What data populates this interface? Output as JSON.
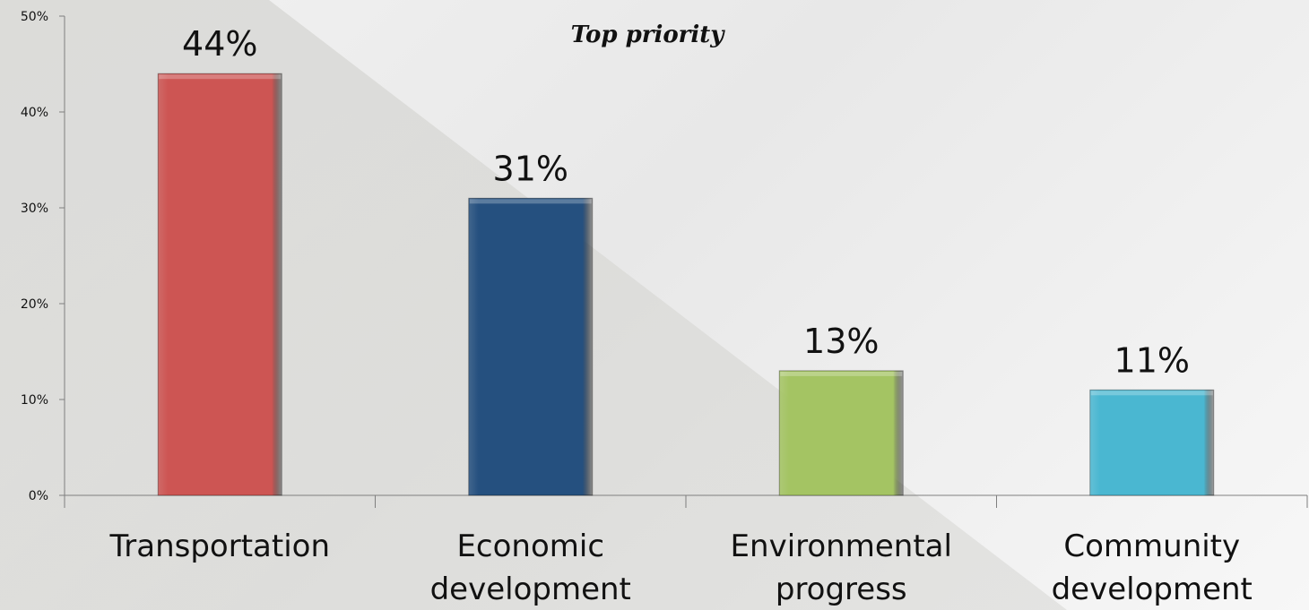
{
  "chart_data": {
    "type": "bar",
    "title": "Top priority",
    "categories": [
      [
        "Transportation"
      ],
      [
        "Economic",
        "development"
      ],
      [
        "Environmental",
        "progress"
      ],
      [
        "Community",
        "development"
      ]
    ],
    "values": [
      44,
      31,
      13,
      11
    ],
    "data_labels": [
      "44%",
      "31%",
      "13%",
      "11%"
    ],
    "colors": [
      "#cd5553",
      "#25507f",
      "#a4c463",
      "#4ab7d1"
    ],
    "ylim": [
      0,
      50
    ],
    "yticks": [
      0,
      10,
      20,
      30,
      40,
      50
    ],
    "ytick_labels": [
      "0%",
      "10%",
      "20%",
      "30%",
      "40%",
      "50%"
    ],
    "xlabel": "",
    "ylabel": "",
    "grid": false,
    "legend": "none"
  }
}
